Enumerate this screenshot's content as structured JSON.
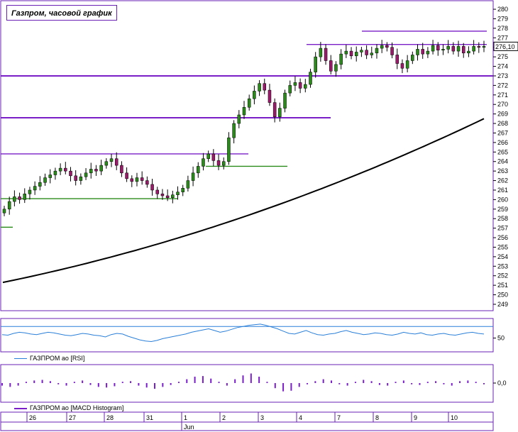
{
  "chart_data": [
    {
      "type": "candlestick",
      "title": "Газпром, часовой график",
      "y_ticks": [
        249,
        250,
        251,
        252,
        253,
        254,
        255,
        256,
        257,
        258,
        259,
        260,
        261,
        262,
        263,
        264,
        265,
        266,
        267,
        268,
        269,
        270,
        271,
        272,
        273,
        274,
        275,
        276,
        277,
        278,
        279,
        280
      ],
      "ylim": [
        248.7,
        280.6
      ],
      "last_price_label": "276,10",
      "last_price": 276.1,
      "candles_close": [
        259.0,
        259.8,
        260.3,
        260.0,
        260.6,
        261.0,
        261.4,
        261.8,
        262.3,
        262.6,
        263.0,
        263.3,
        263.0,
        262.5,
        262.0,
        262.4,
        262.8,
        263.2,
        263.0,
        263.6,
        264.0,
        264.3,
        263.6,
        262.8,
        262.2,
        261.9,
        262.3,
        262.0,
        261.6,
        261.0,
        260.6,
        260.4,
        260.2,
        260.5,
        260.8,
        261.2,
        262.0,
        262.8,
        263.5,
        264.3,
        264.8,
        264.1,
        263.6,
        264.0,
        266.5,
        268.0,
        268.9,
        269.7,
        270.6,
        271.4,
        272.2,
        271.5,
        270.2,
        268.7,
        269.6,
        271.2,
        272.0,
        272.3,
        271.7,
        272.1,
        273.4,
        275.0,
        275.9,
        274.6,
        273.5,
        274.2,
        275.3,
        275.6,
        275.1,
        275.5,
        275.7,
        275.2,
        275.4,
        275.9,
        276.2,
        276.0,
        275.2,
        274.3,
        273.8,
        274.6,
        275.2,
        275.8,
        275.3,
        275.6,
        276.2,
        275.7,
        275.8,
        276.1,
        275.6,
        276.1,
        275.4,
        275.6,
        276.1,
        276.0,
        276.1
      ],
      "support_resistance_levels": [
        {
          "value": 277.7,
          "color": "#7a1fc8"
        },
        {
          "value": 276.3,
          "color": "#7a1fc8"
        },
        {
          "value": 273.0,
          "color": "#7a1fc8"
        },
        {
          "value": 268.6,
          "color": "#7a1fc8"
        },
        {
          "value": 264.8,
          "color": "#7a1fc8"
        },
        {
          "value": 263.5,
          "color": "#2a8a1a"
        },
        {
          "value": 260.1,
          "color": "#2a8a1a"
        },
        {
          "value": 257.1,
          "color": "#2a8a1a"
        }
      ],
      "moving_average_start": 251.3,
      "moving_average_end": 268.5,
      "colors": {
        "up": "#2a8a1a",
        "down": "#9a1a6a",
        "wick": "#000000",
        "ma": "#000000",
        "level": "#7a1fc8",
        "support": "#2a8a1a",
        "axis": "#6a1fb5"
      }
    },
    {
      "type": "line",
      "legend": "ГАЗПРОМ ао [RSI]",
      "y_ticks": [
        50
      ],
      "reference_level": 70,
      "values": [
        56,
        55,
        58,
        60,
        59,
        57,
        56,
        58,
        60,
        59,
        57,
        55,
        54,
        56,
        58,
        57,
        55,
        54,
        52,
        56,
        58,
        57,
        53,
        50,
        47,
        45,
        44,
        46,
        49,
        51,
        53,
        55,
        57,
        60,
        62,
        64,
        66,
        63,
        60,
        62,
        65,
        68,
        70,
        72,
        73,
        74,
        72,
        69,
        66,
        62,
        58,
        57,
        60,
        63,
        59,
        56,
        55,
        57,
        58,
        61,
        63,
        60,
        58,
        56,
        57,
        59,
        58,
        56,
        55,
        57,
        60,
        58,
        57,
        59,
        56,
        55,
        57,
        58,
        56,
        55,
        57,
        59,
        60,
        58,
        57
      ],
      "color": "#2a7fd8"
    },
    {
      "type": "bar",
      "legend": "ГАЗПРОМ ао [MACD Histogram]",
      "y_ticks_labels": [
        "0,0"
      ],
      "values": [
        -0.2,
        -0.3,
        -0.2,
        0.1,
        0.2,
        0.25,
        0.15,
        -0.1,
        -0.2,
        0.1,
        0.2,
        -0.15,
        -0.3,
        -0.35,
        -0.25,
        0.1,
        0.15,
        -0.2,
        -0.35,
        -0.45,
        -0.3,
        -0.15,
        0.1,
        0.3,
        0.5,
        0.55,
        0.35,
        0.1,
        -0.2,
        0.3,
        0.6,
        0.75,
        0.5,
        0.1,
        -0.4,
        -0.65,
        -0.6,
        -0.3,
        -0.1,
        0.15,
        0.3,
        0.2,
        -0.1,
        -0.2,
        0.1,
        0.25,
        0.15,
        -0.15,
        -0.2,
        0.1,
        0.2,
        -0.1,
        -0.15,
        0.1,
        0.15,
        -0.1,
        -0.2,
        0.15,
        0.2,
        0.1,
        -0.1
      ],
      "color": "#7a1fc8"
    }
  ],
  "x_axis": {
    "day_labels": [
      "26",
      "27",
      "28",
      "31",
      "1",
      "2",
      "3",
      "4",
      "7",
      "8",
      "9",
      "10"
    ],
    "month_label": "Jun"
  }
}
